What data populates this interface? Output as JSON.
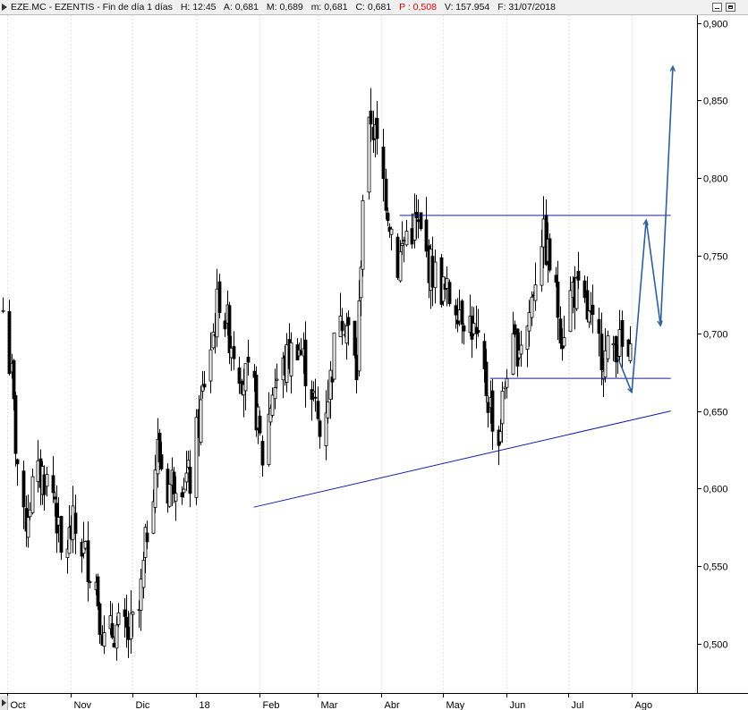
{
  "header": {
    "symbol": "EZE.MC - EZENTIS - Fin de día 1 días",
    "high": "H: 12:45",
    "open": "A: 0,681",
    "max": "M: 0,689",
    "min": "m: 0,681",
    "close": "C: 0,681",
    "change": "P : 0,508",
    "volume": "V: 157.954",
    "date": "F: 31/07/2018"
  },
  "colors": {
    "candle": "#000000",
    "trendline": "#1a1aa8",
    "projection": "#2f5f98",
    "grid": "#cfcfcf",
    "change_text": "#d40000"
  },
  "chart_data": {
    "type": "candlestick",
    "xlabel": "",
    "ylabel": "",
    "ylim": [
      0.47,
      0.905
    ],
    "xlim": [
      "2017-10-01",
      "2018-08-31"
    ],
    "grid": "vertical dotted at month starts",
    "y_ticks": [
      {
        "value": 0.5,
        "label": "0,500"
      },
      {
        "value": 0.55,
        "label": "0,550"
      },
      {
        "value": 0.6,
        "label": "0,600"
      },
      {
        "value": 0.65,
        "label": "0,650"
      },
      {
        "value": 0.7,
        "label": "0,700"
      },
      {
        "value": 0.75,
        "label": "0,750"
      },
      {
        "value": 0.8,
        "label": "0,800"
      },
      {
        "value": 0.85,
        "label": "0,850"
      },
      {
        "value": 0.9,
        "label": "0,900"
      }
    ],
    "x_ticks": [
      {
        "date": "2017-10-01",
        "label": "Oct"
      },
      {
        "date": "2017-11-01",
        "label": "Nov"
      },
      {
        "date": "2017-12-01",
        "label": "Dic"
      },
      {
        "date": "2018-01-01",
        "label": "18"
      },
      {
        "date": "2018-02-01",
        "label": "Feb"
      },
      {
        "date": "2018-03-01",
        "label": "Mar"
      },
      {
        "date": "2018-04-01",
        "label": "Abr"
      },
      {
        "date": "2018-05-01",
        "label": "May"
      },
      {
        "date": "2018-06-01",
        "label": "Jun"
      },
      {
        "date": "2018-07-01",
        "label": "Jul"
      },
      {
        "date": "2018-08-01",
        "label": "Ago"
      }
    ],
    "price_path": [
      [
        "2017-09-29",
        0.715
      ],
      [
        "2017-10-03",
        0.67
      ],
      [
        "2017-10-05",
        0.63
      ],
      [
        "2017-10-09",
        0.575
      ],
      [
        "2017-10-13",
        0.6
      ],
      [
        "2017-10-18",
        0.61
      ],
      [
        "2017-10-24",
        0.595
      ],
      [
        "2017-10-27",
        0.555
      ],
      [
        "2017-11-02",
        0.575
      ],
      [
        "2017-11-07",
        0.56
      ],
      [
        "2017-11-13",
        0.54
      ],
      [
        "2017-11-17",
        0.5
      ],
      [
        "2017-11-22",
        0.51
      ],
      [
        "2017-11-29",
        0.505
      ],
      [
        "2017-12-04",
        0.52
      ],
      [
        "2017-12-08",
        0.575
      ],
      [
        "2017-12-13",
        0.625
      ],
      [
        "2017-12-18",
        0.6
      ],
      [
        "2017-12-22",
        0.61
      ],
      [
        "2017-12-29",
        0.605
      ],
      [
        "2018-01-05",
        0.67
      ],
      [
        "2018-01-09",
        0.7
      ],
      [
        "2018-01-12",
        0.725
      ],
      [
        "2018-01-17",
        0.7
      ],
      [
        "2018-01-23",
        0.675
      ],
      [
        "2018-01-29",
        0.66
      ],
      [
        "2018-02-02",
        0.62
      ],
      [
        "2018-02-07",
        0.665
      ],
      [
        "2018-02-13",
        0.68
      ],
      [
        "2018-02-19",
        0.695
      ],
      [
        "2018-02-26",
        0.665
      ],
      [
        "2018-03-02",
        0.635
      ],
      [
        "2018-03-07",
        0.67
      ],
      [
        "2018-03-12",
        0.72
      ],
      [
        "2018-03-16",
        0.7
      ],
      [
        "2018-03-20",
        0.675
      ],
      [
        "2018-03-23",
        0.79
      ],
      [
        "2018-03-27",
        0.84
      ],
      [
        "2018-04-03",
        0.79
      ],
      [
        "2018-04-09",
        0.745
      ],
      [
        "2018-04-13",
        0.765
      ],
      [
        "2018-04-18",
        0.77
      ],
      [
        "2018-04-24",
        0.745
      ],
      [
        "2018-05-02",
        0.725
      ],
      [
        "2018-05-08",
        0.72
      ],
      [
        "2018-05-15",
        0.705
      ],
      [
        "2018-05-21",
        0.67
      ],
      [
        "2018-05-28",
        0.63
      ],
      [
        "2018-06-01",
        0.68
      ],
      [
        "2018-06-05",
        0.69
      ],
      [
        "2018-06-11",
        0.705
      ],
      [
        "2018-06-18",
        0.765
      ],
      [
        "2018-06-22",
        0.745
      ],
      [
        "2018-06-28",
        0.7
      ],
      [
        "2018-07-03",
        0.73
      ],
      [
        "2018-07-09",
        0.715
      ],
      [
        "2018-07-13",
        0.7
      ],
      [
        "2018-07-19",
        0.685
      ],
      [
        "2018-07-24",
        0.695
      ],
      [
        "2018-07-31",
        0.681
      ]
    ],
    "drawn_lines": [
      {
        "name": "resistance",
        "points": [
          [
            "2018-04-10",
            0.776
          ],
          [
            "2018-08-20",
            0.776
          ]
        ]
      },
      {
        "name": "support",
        "points": [
          [
            "2018-05-24",
            0.671
          ],
          [
            "2018-08-20",
            0.671
          ]
        ]
      },
      {
        "name": "rising-trendline",
        "points": [
          [
            "2018-01-29",
            0.588
          ],
          [
            "2018-08-20",
            0.65
          ]
        ]
      }
    ],
    "projection": [
      [
        "2018-07-25",
        0.685
      ],
      [
        "2018-08-01",
        0.662
      ],
      [
        "2018-08-08",
        0.773
      ],
      [
        "2018-08-15",
        0.705
      ],
      [
        "2018-08-21",
        0.872
      ]
    ]
  }
}
